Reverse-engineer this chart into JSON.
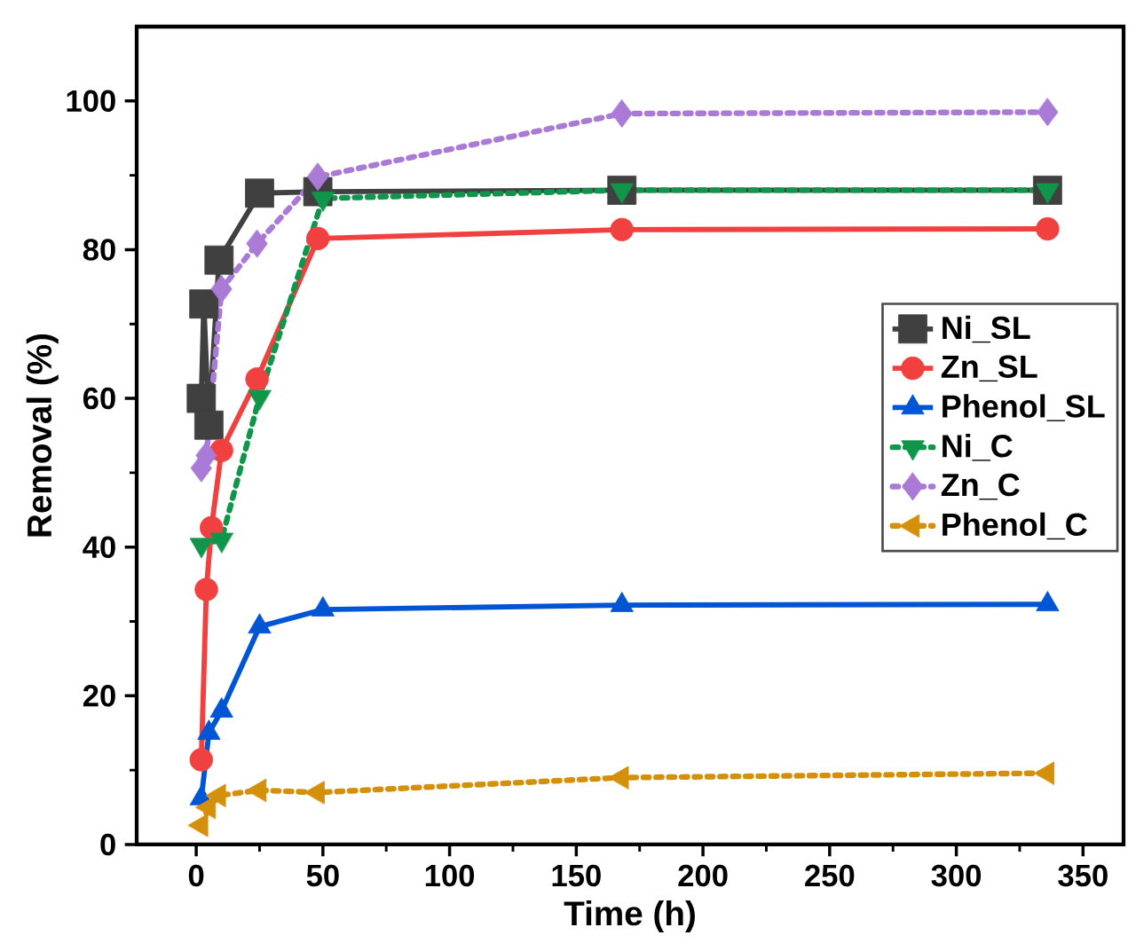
{
  "chart_data": {
    "type": "line",
    "xlabel": "Time (h)",
    "ylabel": "Removal (%)",
    "xlim": [
      -23.5,
      366
    ],
    "ylim": [
      0,
      110
    ],
    "xticks": [
      0,
      50,
      100,
      150,
      200,
      250,
      300,
      350
    ],
    "yticks": [
      0,
      20,
      40,
      60,
      80,
      100
    ],
    "legend": "right",
    "series": [
      {
        "name": "Ni_SL",
        "color": "#404040",
        "marker": "square",
        "line_style": "solid",
        "x": [
          2,
          3,
          5,
          9,
          25,
          48,
          168,
          336
        ],
        "values": [
          60,
          72.7,
          56.4,
          78.6,
          87.6,
          87.8,
          88,
          88
        ]
      },
      {
        "name": "Zn_SL",
        "color": "#f04040",
        "marker": "circle",
        "line_style": "solid",
        "x": [
          2,
          4,
          6,
          10,
          24,
          48,
          168,
          336
        ],
        "values": [
          11.4,
          34.3,
          42.6,
          53,
          62.6,
          81.5,
          82.7,
          82.8
        ]
      },
      {
        "name": "Phenol_SL",
        "color": "#0055d4",
        "marker": "triangle",
        "line_style": "solid",
        "x": [
          2,
          5,
          10,
          25,
          50,
          168,
          336
        ],
        "values": [
          6.2,
          15,
          18,
          29.3,
          31.6,
          32.2,
          32.3
        ]
      },
      {
        "name": "Ni_C",
        "color": "#10964a",
        "marker": "triangle-down",
        "line_style": "dotted",
        "x": [
          2,
          10,
          25,
          50,
          168,
          336
        ],
        "values": [
          40.3,
          41,
          60.2,
          86.9,
          88,
          88
        ]
      },
      {
        "name": "Zn_C",
        "color": "#a97ad6",
        "marker": "diamond",
        "line_style": "dotted",
        "x": [
          2,
          4,
          10,
          24,
          48,
          168,
          336
        ],
        "values": [
          50.6,
          52.3,
          74.7,
          80.8,
          89.8,
          98.3,
          98.5
        ]
      },
      {
        "name": "Phenol_C",
        "color": "#d4900a",
        "marker": "triangle-left",
        "line_style": "dotted",
        "x": [
          2,
          5,
          9,
          25,
          48,
          168,
          336
        ],
        "values": [
          2.6,
          5,
          6.6,
          7.3,
          7,
          9,
          9.6
        ]
      }
    ]
  }
}
